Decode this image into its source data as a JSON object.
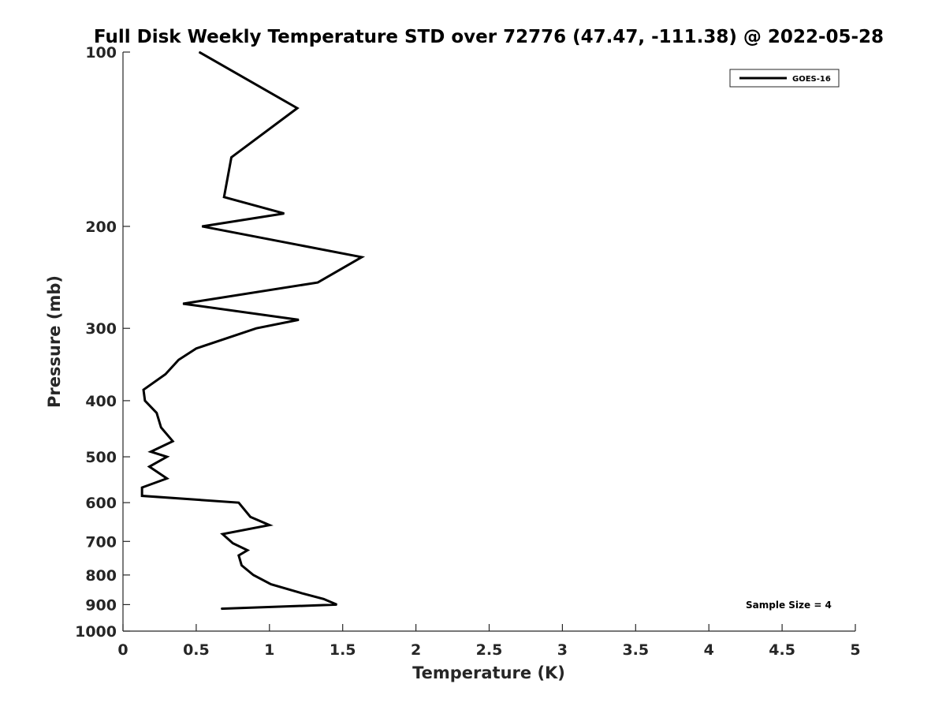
{
  "chart_data": {
    "type": "line",
    "title": "Full Disk Weekly Temperature STD over 72776 (47.47, -111.38) @ 2022-05-28",
    "xlabel": "Temperature (K)",
    "ylabel": "Pressure (mb)",
    "xlim": [
      0,
      5
    ],
    "ylim": [
      100,
      1000
    ],
    "y_scale": "log",
    "y_direction": "reversed",
    "x_ticks": [
      "0",
      "0.5",
      "1",
      "1.5",
      "2",
      "2.5",
      "3",
      "3.5",
      "4",
      "4.5",
      "5"
    ],
    "y_ticks": [
      "100",
      "200",
      "300",
      "400",
      "500",
      "600",
      "700",
      "800",
      "900",
      "1000"
    ],
    "grid": false,
    "legend_position": "top-right",
    "annotation": "Sample Size = 4",
    "series": [
      {
        "name": "GOES-16",
        "color": "#000000",
        "points": [
          [
            0.52,
            100
          ],
          [
            1.19,
            125
          ],
          [
            0.74,
            152
          ],
          [
            0.69,
            178
          ],
          [
            1.1,
            190
          ],
          [
            0.54,
            200
          ],
          [
            1.63,
            226
          ],
          [
            1.33,
            250
          ],
          [
            0.41,
            272
          ],
          [
            1.2,
            290
          ],
          [
            0.91,
            300
          ],
          [
            0.5,
            325
          ],
          [
            0.38,
            340
          ],
          [
            0.29,
            360
          ],
          [
            0.14,
            383
          ],
          [
            0.15,
            400
          ],
          [
            0.23,
            420
          ],
          [
            0.26,
            445
          ],
          [
            0.34,
            470
          ],
          [
            0.19,
            490
          ],
          [
            0.3,
            500
          ],
          [
            0.18,
            520
          ],
          [
            0.3,
            545
          ],
          [
            0.13,
            565
          ],
          [
            0.13,
            584
          ],
          [
            0.79,
            600
          ],
          [
            0.87,
            635
          ],
          [
            1.0,
            656
          ],
          [
            0.68,
            680
          ],
          [
            0.75,
            705
          ],
          [
            0.85,
            725
          ],
          [
            0.79,
            740
          ],
          [
            0.81,
            770
          ],
          [
            0.89,
            800
          ],
          [
            1.01,
            830
          ],
          [
            1.22,
            860
          ],
          [
            1.37,
            880
          ],
          [
            1.46,
            900
          ],
          [
            0.67,
            915
          ]
        ]
      }
    ]
  }
}
